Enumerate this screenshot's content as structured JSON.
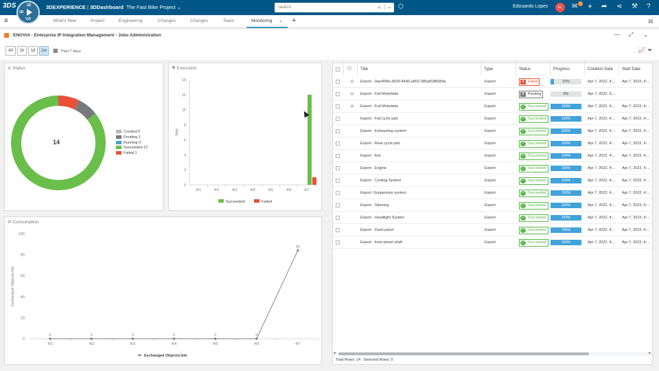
{
  "topbar": {
    "brand": "3DS",
    "compass": {
      "north": "3D",
      "west": "3D",
      "south": "V,R"
    },
    "app_title_prefix": "3DEXPERIENCE",
    "app_title_sep": " | ",
    "app_name": "3DDashboard",
    "dashboard_name": "The Fast Bike Project",
    "search_placeholder": "Search",
    "username": "Edouardo Lopes",
    "avatar_initials": "EL",
    "notification_count": "7",
    "colors": {
      "bar": "#005686",
      "avatar": "#ea4f4f",
      "badge": "#ff8a2e"
    }
  },
  "tabs": {
    "items": [
      "What's New",
      "Project",
      "Engineering",
      "Changes",
      "Changes",
      "Team",
      "Monitoring"
    ],
    "active": "Monitoring"
  },
  "widget": {
    "title": "ENOVIA - Enterprise IP Integration Management - Jobs Administration"
  },
  "filters": {
    "buttons": [
      "All",
      "1h",
      "1d",
      "1w"
    ],
    "active": "1w",
    "range_label": "Past 7 days"
  },
  "status_panel": {
    "title": "Status",
    "total": "14",
    "legend": [
      {
        "label": "Created 0",
        "color": "#b4b6ba"
      },
      {
        "label": "Pending 1",
        "color": "#77797c"
      },
      {
        "label": "Running 0",
        "color": "#42a2da"
      },
      {
        "label": "Succeeded 12",
        "color": "#6abf4b"
      },
      {
        "label": "Failed 1",
        "color": "#ea4f37"
      }
    ]
  },
  "execution_panel": {
    "title": "Execution",
    "ylabel": "Jobs",
    "legend": [
      {
        "label": "Succeeded",
        "color": "#6abf4b"
      },
      {
        "label": "Failed",
        "color": "#ea4f37"
      }
    ]
  },
  "consumption_panel": {
    "title": "Consumption",
    "ylabel": "Exchanged Objects/Job",
    "legend": "Exchanged Objects/Job"
  },
  "chart_data": [
    {
      "type": "pie",
      "title": "Status",
      "categories": [
        "Created",
        "Pending",
        "Running",
        "Succeeded",
        "Failed"
      ],
      "values": [
        0,
        1,
        0,
        12,
        1
      ],
      "colors": [
        "#b4b6ba",
        "#77797c",
        "#42a2da",
        "#6abf4b",
        "#ea4f37"
      ],
      "center_label": "14",
      "legend": "right"
    },
    {
      "type": "bar",
      "title": "Execution",
      "categories": [
        "4/1",
        "4/2",
        "4/3",
        "4/4",
        "4/5",
        "4/6",
        "4/7"
      ],
      "series": [
        {
          "name": "Succeeded",
          "values": [
            0,
            0,
            0,
            0,
            0,
            0,
            12
          ],
          "color": "#6abf4b"
        },
        {
          "name": "Failed",
          "values": [
            0,
            0,
            0,
            0,
            0,
            0,
            1
          ],
          "color": "#ea4f37"
        }
      ],
      "ylabel": "Jobs",
      "ylim": [
        0,
        14
      ],
      "yticks": [
        0,
        2,
        4,
        6,
        8,
        10,
        12,
        14
      ],
      "grid": false,
      "legend": "bottom"
    },
    {
      "type": "line",
      "title": "Consumption",
      "categories": [
        "4/1",
        "4/2",
        "4/3",
        "4/4",
        "4/5",
        "4/6",
        "4/7"
      ],
      "series": [
        {
          "name": "Exchanged Objects/Job",
          "values": [
            0,
            0,
            0,
            0,
            0,
            0,
            84
          ],
          "color": "#77797c"
        }
      ],
      "ylabel": "Exchanged Objects/Job",
      "ylim": [
        0,
        100
      ],
      "yticks": [
        0,
        20,
        40,
        60,
        80,
        100
      ],
      "grid": false,
      "legend": "bottom"
    }
  ],
  "grid": {
    "headers": [
      "Title",
      "Type",
      "Status",
      "Progress",
      "Creation Date",
      "Start Date"
    ],
    "rows": [
      {
        "title": "Export - 0ae400fe-d639-44d0-a802-985a818b084a",
        "type": "Export",
        "status": "Failed",
        "progress": 10,
        "progress_label": "10%",
        "created": "Apr 7, 2022, 4:...",
        "started": "Apr 7, 2022, 4:..."
      },
      {
        "title": "Export - Full Motorbike",
        "type": "Export",
        "status": "Pending",
        "progress": 0,
        "progress_label": "0%",
        "created": "Apr 7, 2022, 5:...",
        "started": ""
      },
      {
        "title": "Export - Full Motorbike",
        "type": "Export",
        "status": "Succeeded",
        "progress": 100,
        "progress_label": "100%",
        "created": "Apr 7, 2022, 4:...",
        "started": "Apr 7, 2022, 4:..."
      },
      {
        "title": "Export - Full cycle part",
        "type": "Export",
        "status": "Succeeded",
        "progress": 100,
        "progress_label": "100%",
        "created": "Apr 7, 2022, 4:...",
        "started": "Apr 7, 2022, 4:..."
      },
      {
        "title": "Export - Exhausting system",
        "type": "Export",
        "status": "Succeeded",
        "progress": 100,
        "progress_label": "100%",
        "created": "Apr 7, 2022, 4:...",
        "started": "Apr 7, 2022, 4:..."
      },
      {
        "title": "Export - Rear cycle part",
        "type": "Export",
        "status": "Succeeded",
        "progress": 100,
        "progress_label": "100%",
        "created": "Apr 7, 2022, 4:...",
        "started": "Apr 7, 2022, 4:..."
      },
      {
        "title": "Export - fork",
        "type": "Export",
        "status": "Succeeded",
        "progress": 100,
        "progress_label": "100%",
        "created": "Apr 7, 2022, 4:...",
        "started": "Apr 7, 2022, 4:..."
      },
      {
        "title": "Export - Engine",
        "type": "Export",
        "status": "Succeeded",
        "progress": 100,
        "progress_label": "100%",
        "created": "Apr 7, 2022, 4:...",
        "started": "Apr 7, 2022, 4:..."
      },
      {
        "title": "Export - Cooling System",
        "type": "Export",
        "status": "Succeeded",
        "progress": 100,
        "progress_label": "100%",
        "created": "Apr 7, 2022, 4:...",
        "started": "Apr 7, 2022, 4:..."
      },
      {
        "title": "Export -Suspension system",
        "type": "Export",
        "status": "Succeeded",
        "progress": 100,
        "progress_label": "100%",
        "created": "Apr 7, 2022, 4:...",
        "started": "Apr 7, 2022, 4:..."
      },
      {
        "title": "Export - Steering",
        "type": "Export",
        "status": "Succeeded",
        "progress": 100,
        "progress_label": "100%",
        "created": "Apr 7, 2022, 4:...",
        "started": "Apr 7, 2022, 4:..."
      },
      {
        "title": "Export - Headlight System",
        "type": "Export",
        "status": "Succeeded",
        "progress": 100,
        "progress_label": "100%",
        "created": "Apr 7, 2022, 4:...",
        "started": "Apr 7, 2022, 4:..."
      },
      {
        "title": "Export - Dash panel",
        "type": "Export",
        "status": "Succeeded",
        "progress": 100,
        "progress_label": "100%",
        "created": "Apr 7, 2022, 4:...",
        "started": "Apr 7, 2022, 4:..."
      },
      {
        "title": "Export - front wheel shaft",
        "type": "Export",
        "status": "Succeeded",
        "progress": 100,
        "progress_label": "100%",
        "created": "Apr 7, 2022, 4:...",
        "started": "Apr 7, 2022, 4:..."
      }
    ],
    "footer": {
      "total": "Total Rows: 14",
      "selected": "Selected Rows: 0"
    }
  }
}
